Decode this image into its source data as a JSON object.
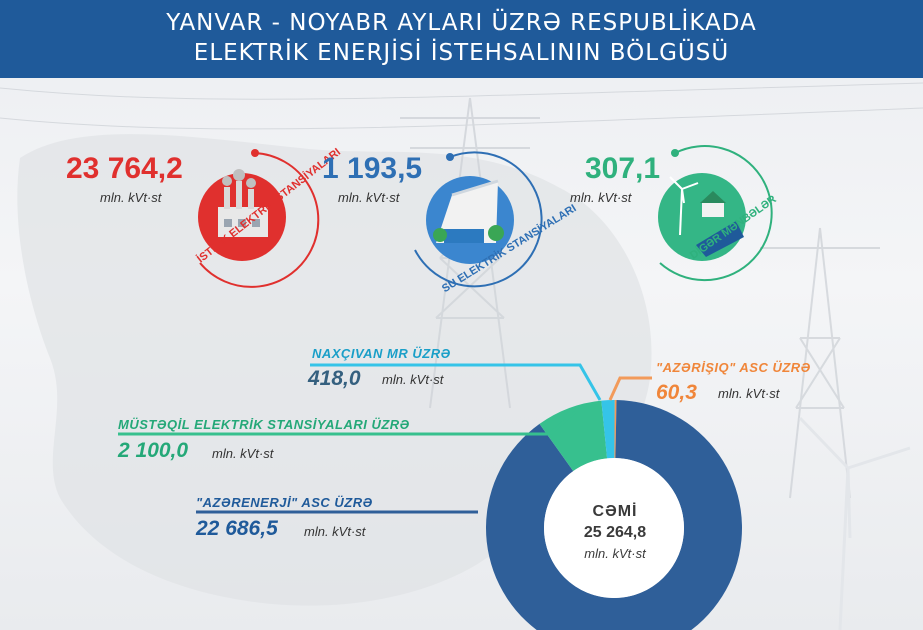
{
  "header": {
    "title_line1": "YANVAR - NOYABR AYLARI ÜZRƏ RESPUBLİKADA",
    "title_line2": "ELEKTRİK ENERJİSİ İSTEHSALININ BÖLGÜSÜ"
  },
  "sources": [
    {
      "value": "23 764,2",
      "unit": "mln. kVt·st",
      "name": "İSTİLİK ELEKTRİK STANSİYALARI",
      "color": "#e0302e",
      "icon": "thermal-plant-icon"
    },
    {
      "value": "1 193,5",
      "unit": "mln. kVt·st",
      "name": "SU ELEKTRİK STANSİYALARI",
      "color": "#2e6fb4",
      "icon": "hydro-dam-icon"
    },
    {
      "value": "307,1",
      "unit": "mln. kVt·st",
      "name": "DİGƏR MƏNBƏLƏR",
      "color": "#2fb17d",
      "icon": "renewable-energy-icon"
    }
  ],
  "chart_data": {
    "type": "pie",
    "donut": true,
    "total_label": "CƏMİ",
    "total_value": "25 264,8",
    "total_unit": "mln. kVt·st",
    "unit": "mln. kVt·st",
    "slices": [
      {
        "name": "\"AZƏRENERJİ\" ASC ÜZRƏ",
        "value": 22686.5,
        "display": "22 686,5",
        "color": "#2f5f99"
      },
      {
        "name": "MÜSTƏQİL ELEKTRİK STANSİYALARI ÜZRƏ",
        "value": 2100.0,
        "display": "2 100,0",
        "color": "#37c08e"
      },
      {
        "name": "NAXÇIVAN MR ÜZRƏ",
        "value": 418.0,
        "display": "418,0",
        "color": "#35c4e8"
      },
      {
        "name": "\"AZƏRİŞIQ\" ASC ÜZRƏ",
        "value": 60.3,
        "display": "60,3",
        "color": "#f29a5a"
      }
    ]
  }
}
